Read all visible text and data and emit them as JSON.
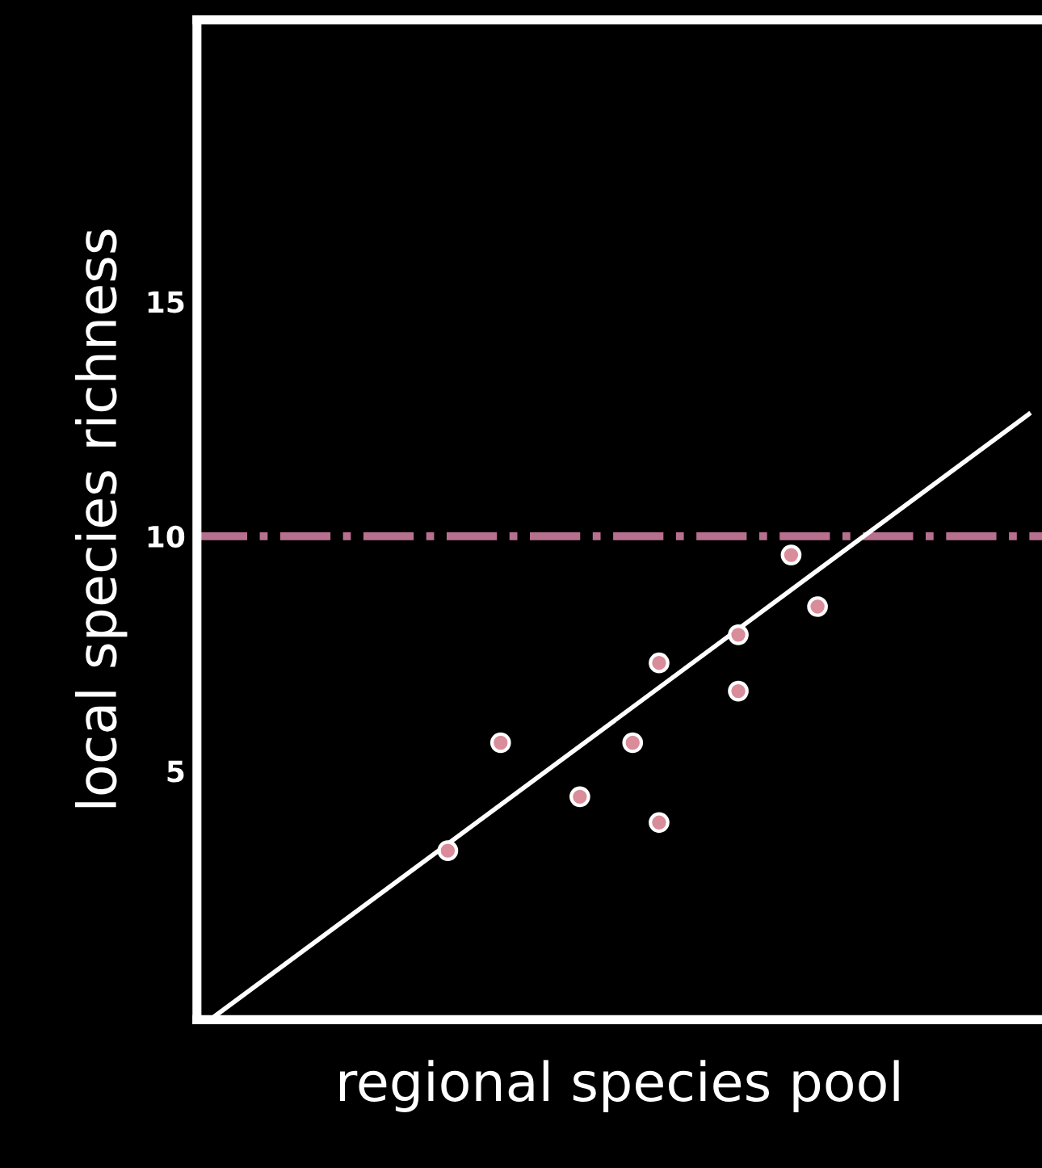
{
  "chart_data": {
    "type": "scatter",
    "xlabel": "regional species pool",
    "ylabel": "local species richness",
    "categories": [
      null,
      null,
      null,
      null,
      null,
      null,
      null,
      null,
      null,
      null,
      null,
      null,
      null,
      null,
      null,
      null,
      null,
      null,
      null,
      null,
      null,
      null,
      null,
      null,
      null,
      null,
      null,
      null,
      null,
      null,
      null,
      null
    ],
    "ylim": [
      -0.3,
      21
    ],
    "yticks": [
      5,
      10,
      15
    ],
    "tick_labels": "y",
    "grid": false,
    "legend": false,
    "marker": "circle",
    "series": [
      {
        "color": "#d98c9a",
        "values": [
          null,
          null,
          null,
          null,
          null,
          null,
          null,
          null,
          null,
          3.3,
          null,
          5.6,
          null,
          null,
          4.45,
          null,
          5.6,
          7.3,
          null,
          null,
          7.9,
          null,
          9.6,
          8.5,
          null,
          null,
          null,
          null,
          null,
          null,
          null,
          null
        ]
      },
      {
        "color": "#d98c9a",
        "values": [
          null,
          null,
          null,
          null,
          null,
          null,
          null,
          null,
          null,
          null,
          null,
          null,
          null,
          null,
          null,
          null,
          null,
          3.9,
          null,
          null,
          6.7,
          null,
          null,
          null,
          null,
          null,
          null,
          null,
          null,
          null,
          null,
          null
        ]
      },
      {
        "type": "line",
        "color": "#ffffff",
        "marker": "none",
        "line_style": "solid",
        "values": [
          -0.3,
          null,
          null,
          null,
          null,
          null,
          null,
          null,
          null,
          null,
          null,
          null,
          null,
          null,
          null,
          null,
          null,
          null,
          null,
          null,
          null,
          null,
          null,
          null,
          null,
          null,
          null,
          null,
          null,
          null,
          null,
          12.6
        ]
      }
    ],
    "ref_lines": [
      {
        "axis": "y",
        "value": 10,
        "label": null,
        "color": "#b8708f",
        "line_style": "dashdot"
      }
    ]
  }
}
